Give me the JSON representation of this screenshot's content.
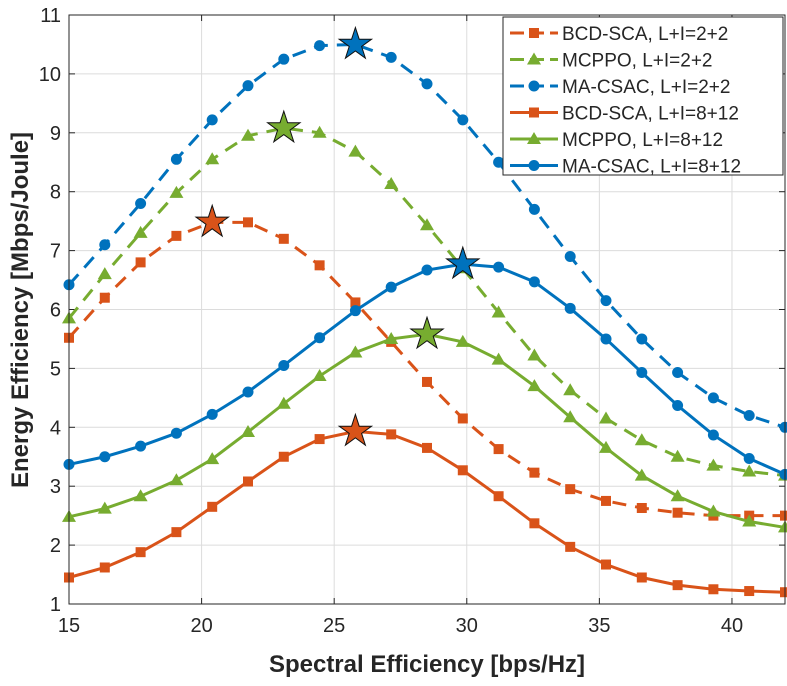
{
  "chart_data": {
    "type": "line",
    "title": "",
    "xlabel": "Spectral Efficiency [bps/Hz]",
    "ylabel": "Energy Efficiency [Mbps/Joule]",
    "xlim": [
      15,
      42
    ],
    "ylim": [
      1,
      11
    ],
    "xticks": [
      15,
      20,
      25,
      30,
      35,
      40
    ],
    "yticks": [
      1,
      2,
      3,
      4,
      5,
      6,
      7,
      8,
      9,
      10,
      11
    ],
    "grid": true,
    "legend_position": "top-right",
    "x": [
      15,
      16.35,
      17.7,
      19.05,
      20.4,
      21.75,
      23.1,
      24.45,
      25.8,
      27.15,
      28.5,
      29.85,
      31.2,
      32.55,
      33.9,
      35.25,
      36.6,
      37.95,
      39.3,
      40.65,
      42
    ],
    "series": [
      {
        "name": "BCD-SCA, L+I=2+2",
        "color": "#D95319",
        "dash": true,
        "marker": "square",
        "values": [
          5.52,
          6.2,
          6.8,
          7.25,
          7.48,
          7.48,
          7.2,
          6.75,
          6.12,
          5.45,
          4.77,
          4.15,
          3.63,
          3.23,
          2.95,
          2.75,
          2.63,
          2.55,
          2.5,
          2.5,
          2.5
        ],
        "peak": {
          "x": 20.4,
          "y": 7.48
        }
      },
      {
        "name": "MCPPO, L+I=2+2",
        "color": "#77AC30",
        "dash": true,
        "marker": "triangle",
        "values": [
          5.85,
          6.6,
          7.3,
          7.98,
          8.55,
          8.95,
          9.08,
          9.0,
          8.68,
          8.13,
          7.43,
          6.7,
          5.95,
          5.22,
          4.63,
          4.15,
          3.78,
          3.5,
          3.35,
          3.25,
          3.18
        ],
        "peak": {
          "x": 23.1,
          "y": 9.08
        }
      },
      {
        "name": "MA-CSAC, L+I=2+2",
        "color": "#0072BD",
        "dash": true,
        "marker": "circle",
        "values": [
          6.42,
          7.1,
          7.8,
          8.55,
          9.22,
          9.8,
          10.25,
          10.48,
          10.5,
          10.28,
          9.83,
          9.22,
          8.5,
          7.7,
          6.9,
          6.15,
          5.5,
          4.93,
          4.5,
          4.2,
          4.0
        ],
        "peak": {
          "x": 25.8,
          "y": 10.5
        }
      },
      {
        "name": "BCD-SCA, L+I=8+12",
        "color": "#D95319",
        "dash": false,
        "marker": "square",
        "values": [
          1.45,
          1.62,
          1.88,
          2.22,
          2.65,
          3.08,
          3.5,
          3.8,
          3.93,
          3.88,
          3.65,
          3.27,
          2.83,
          2.37,
          1.97,
          1.67,
          1.45,
          1.32,
          1.25,
          1.22,
          1.2
        ],
        "peak": {
          "x": 25.8,
          "y": 3.93
        }
      },
      {
        "name": "MCPPO, L+I=8+12",
        "color": "#77AC30",
        "dash": false,
        "marker": "triangle",
        "values": [
          2.48,
          2.62,
          2.83,
          3.1,
          3.46,
          3.92,
          4.4,
          4.87,
          5.27,
          5.5,
          5.58,
          5.45,
          5.15,
          4.7,
          4.17,
          3.65,
          3.18,
          2.83,
          2.57,
          2.4,
          2.3
        ],
        "peak": {
          "x": 28.5,
          "y": 5.58
        }
      },
      {
        "name": "MA-CSAC, L+I=8+12",
        "color": "#0072BD",
        "dash": false,
        "marker": "circle",
        "values": [
          3.37,
          3.5,
          3.68,
          3.9,
          4.22,
          4.6,
          5.05,
          5.52,
          5.98,
          6.38,
          6.67,
          6.77,
          6.72,
          6.47,
          6.02,
          5.5,
          4.93,
          4.37,
          3.87,
          3.47,
          3.2
        ],
        "peak": {
          "x": 29.85,
          "y": 6.77
        }
      }
    ]
  }
}
